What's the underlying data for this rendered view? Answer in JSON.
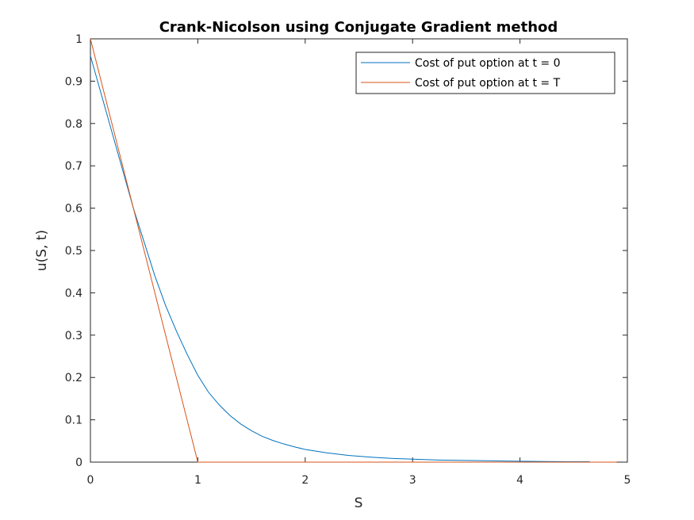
{
  "chart_data": {
    "type": "line",
    "title": "Crank-Nicolson using Conjugate Gradient method",
    "xlabel": "S",
    "ylabel": "u(S, t)",
    "xlim": [
      0,
      5
    ],
    "ylim": [
      0,
      1
    ],
    "xticks": [
      "0",
      "1",
      "2",
      "3",
      "4",
      "5"
    ],
    "yticks": [
      "0",
      "0.1",
      "0.2",
      "0.3",
      "0.4",
      "0.5",
      "0.6",
      "0.7",
      "0.8",
      "0.9",
      "1"
    ],
    "grid": false,
    "legend_position": "top-right",
    "series": [
      {
        "name": "Cost of put option at t = 0",
        "color": "#0072BD",
        "x": [
          0,
          0.1,
          0.2,
          0.3,
          0.4,
          0.5,
          0.6,
          0.7,
          0.8,
          0.9,
          1.0,
          1.1,
          1.2,
          1.3,
          1.4,
          1.5,
          1.6,
          1.7,
          1.8,
          1.9,
          2.0,
          2.2,
          2.4,
          2.6,
          2.8,
          3.0,
          3.25,
          3.5,
          3.75,
          4.0,
          4.25,
          4.5,
          4.65
        ],
        "y": [
          0.96,
          0.87,
          0.78,
          0.69,
          0.6,
          0.52,
          0.44,
          0.37,
          0.31,
          0.255,
          0.205,
          0.165,
          0.135,
          0.11,
          0.09,
          0.074,
          0.061,
          0.051,
          0.043,
          0.036,
          0.03,
          0.022,
          0.016,
          0.012,
          0.009,
          0.007,
          0.005,
          0.004,
          0.003,
          0.002,
          0.0015,
          0.001,
          0.001
        ]
      },
      {
        "name": "Cost of put option at t = T",
        "color": "#D95319",
        "x": [
          0,
          1.0,
          4.9
        ],
        "y": [
          1.0,
          0,
          0
        ]
      }
    ]
  }
}
